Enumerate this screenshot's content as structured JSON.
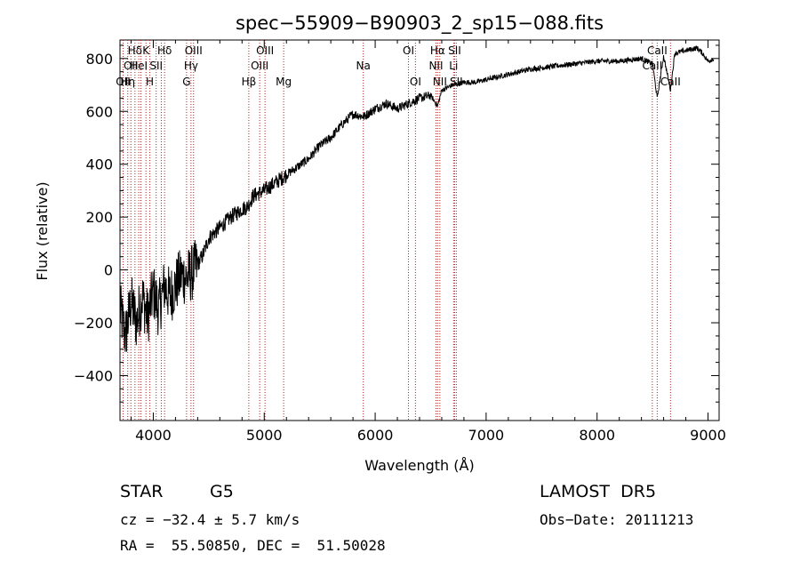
{
  "chart_data": {
    "type": "line",
    "title": "spec−55909−B90903_2_sp15−088.fits",
    "xlabel": "Wavelength (Å)",
    "ylabel": "Flux (relative)",
    "xlim": [
      3700,
      9100
    ],
    "ylim": [
      -570,
      870
    ],
    "xticks": [
      4000,
      5000,
      6000,
      7000,
      8000,
      9000
    ],
    "yticks": [
      -400,
      -200,
      0,
      200,
      400,
      600,
      800
    ],
    "ytick_labels": [
      "−400",
      "−200",
      "0",
      "200",
      "400",
      "600",
      "800"
    ],
    "grid": false,
    "series": [
      {
        "x": [
          3700,
          3750,
          3800,
          3850,
          3900,
          3950,
          4000,
          4050,
          4100,
          4150,
          4200,
          4250,
          4300,
          4350,
          4400,
          4450,
          4500,
          4600,
          4700,
          4800,
          4850,
          4900,
          5000,
          5100,
          5200,
          5300,
          5400,
          5500,
          5600,
          5700,
          5800,
          5900,
          6000,
          6100,
          6200,
          6300,
          6400,
          6500,
          6563,
          6600,
          6700,
          6800,
          6900,
          7000,
          7200,
          7400,
          7600,
          7800,
          8000,
          8200,
          8400,
          8500,
          8542,
          8600,
          8662,
          8700,
          8800,
          8900,
          8950,
          9000,
          9050
        ],
        "y": [
          -150,
          -250,
          -120,
          -200,
          -100,
          -180,
          -80,
          -150,
          -60,
          -100,
          -60,
          -20,
          -30,
          -10,
          20,
          60,
          120,
          160,
          200,
          230,
          240,
          280,
          300,
          330,
          360,
          390,
          420,
          470,
          500,
          550,
          590,
          580,
          610,
          630,
          610,
          630,
          650,
          660,
          620,
          680,
          700,
          710,
          710,
          720,
          740,
          760,
          770,
          780,
          790,
          790,
          800,
          780,
          650,
          810,
          680,
          820,
          830,
          840,
          820,
          790,
          800
        ]
      }
    ],
    "lines": [
      {
        "x": 3728,
        "label": "OII",
        "row": 2
      },
      {
        "x": 3770,
        "label": "Hη",
        "row": 2
      },
      {
        "x": 3798,
        "label": "OII",
        "row": 1
      },
      {
        "x": 3835,
        "label": "Hδ",
        "row": 0
      },
      {
        "x": 3869,
        "label": "HeI",
        "row": 1
      },
      {
        "x": 3889,
        "label": "",
        "row": 2
      },
      {
        "x": 3934,
        "label": "K",
        "row": 0
      },
      {
        "x": 3969,
        "label": "H",
        "row": 2
      },
      {
        "x": 4026,
        "label": "SII",
        "row": 1
      },
      {
        "x": 4072,
        "label": "",
        "row": 1
      },
      {
        "x": 4102,
        "label": "Hδ",
        "row": 0
      },
      {
        "x": 4300,
        "label": "G",
        "row": 2
      },
      {
        "x": 4340,
        "label": "Hγ",
        "row": 1
      },
      {
        "x": 4363,
        "label": "OIII",
        "row": 0
      },
      {
        "x": 4861,
        "label": "Hβ",
        "row": 2
      },
      {
        "x": 4959,
        "label": "OIII",
        "row": 1
      },
      {
        "x": 5007,
        "label": "OIII",
        "row": 0
      },
      {
        "x": 5175,
        "label": "Mg",
        "row": 2
      },
      {
        "x": 5893,
        "label": "Na",
        "row": 1
      },
      {
        "x": 6300,
        "label": "OI",
        "row": 0
      },
      {
        "x": 6363,
        "label": "OI",
        "row": 2
      },
      {
        "x": 6548,
        "label": "NII",
        "row": 1
      },
      {
        "x": 6563,
        "label": "Hα",
        "row": 0
      },
      {
        "x": 6583,
        "label": "NII",
        "row": 2
      },
      {
        "x": 6707,
        "label": "Li",
        "row": 1
      },
      {
        "x": 6716,
        "label": "SII",
        "row": 0
      },
      {
        "x": 6731,
        "label": "SII",
        "row": 2
      },
      {
        "x": 8498,
        "label": "CaII",
        "row": 1
      },
      {
        "x": 8542,
        "label": "CaII",
        "row": 0
      },
      {
        "x": 8662,
        "label": "CaII",
        "row": 2
      }
    ]
  },
  "info": {
    "object_class": "STAR",
    "subclass": "G5",
    "survey": "LAMOST  DR5",
    "cz_line": "cz = −32.4 ± 5.7 km/s",
    "obs_date": "Obs−Date: 20111213",
    "coords": "RA =  55.50850, DEC =  51.50028"
  },
  "colors": {
    "spectrum": "#000000",
    "marker_lines": "#b22222",
    "axes": "#000000"
  }
}
